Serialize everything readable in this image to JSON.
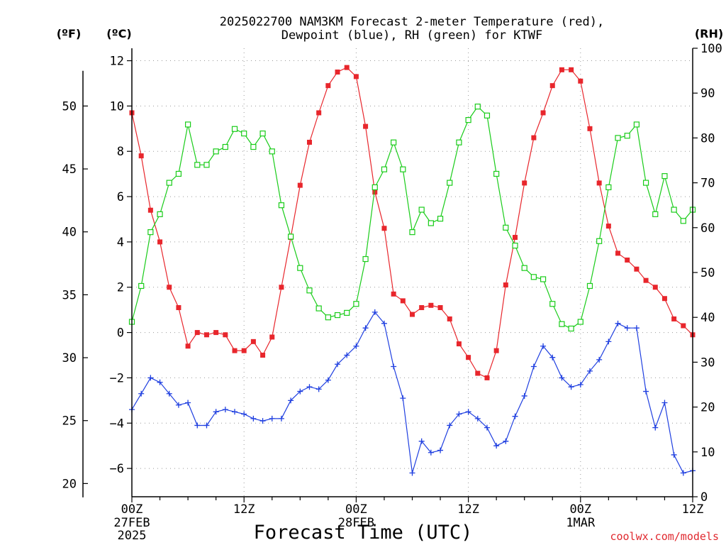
{
  "chart_data": {
    "type": "line",
    "title_line1": "2025022700 NAM3KM Forecast 2-meter Temperature (red),",
    "title_line2": "Dewpoint (blue), RH (green) for KTWF",
    "unit_labels": {
      "fahrenheit": "(ºF)",
      "celsius": "(ºC)",
      "rh": "(RH)"
    },
    "xlabel": "Forecast Time (UTC)",
    "watermark": "coolwx.com/models",
    "x_range_hours": [
      0,
      60
    ],
    "x_ticks": [
      {
        "hour": 0,
        "label": "00Z",
        "date": "27FEB",
        "year": "2025"
      },
      {
        "hour": 12,
        "label": "12Z",
        "date": "",
        "year": ""
      },
      {
        "hour": 24,
        "label": "00Z",
        "date": "28FEB",
        "year": ""
      },
      {
        "hour": 36,
        "label": "12Z",
        "date": "",
        "year": ""
      },
      {
        "hour": 48,
        "label": "00Z",
        "date": "1MAR",
        "year": ""
      },
      {
        "hour": 60,
        "label": "12Z",
        "date": "",
        "year": ""
      }
    ],
    "y_celsius": {
      "range": [
        -7.25,
        12.55
      ],
      "ticks": [
        -6,
        -4,
        -2,
        0,
        2,
        4,
        6,
        8,
        10,
        12
      ],
      "tick_labels": [
        "−6",
        "−4",
        "−2",
        "0",
        "2",
        "4",
        "6",
        "8",
        "10",
        "12"
      ]
    },
    "y_fahrenheit": {
      "ticks": [
        20,
        25,
        30,
        35,
        40,
        45,
        50
      ],
      "tick_labels": [
        "20",
        "25",
        "30",
        "35",
        "40",
        "45",
        "50"
      ]
    },
    "y_rh": {
      "range": [
        0,
        100
      ],
      "ticks": [
        0,
        10,
        20,
        30,
        40,
        50,
        60,
        70,
        80,
        90,
        100
      ],
      "tick_labels": [
        "0",
        "10",
        "20",
        "30",
        "40",
        "50",
        "60",
        "70",
        "80",
        "90",
        "100"
      ]
    },
    "grid": true,
    "colors": {
      "temperature": "#e8262c",
      "dewpoint": "#1f3fe0",
      "rh": "#19cc19",
      "axis": "#000000",
      "grid": "#999999",
      "watermark": "#e0282e"
    },
    "hours": [
      0,
      1,
      2,
      3,
      4,
      5,
      6,
      7,
      8,
      9,
      10,
      11,
      12,
      13,
      14,
      15,
      16,
      17,
      18,
      19,
      20,
      21,
      22,
      23,
      24,
      25,
      26,
      27,
      28,
      29,
      30,
      31,
      32,
      33,
      34,
      35,
      36,
      37,
      38,
      39,
      40,
      41,
      42,
      43,
      44,
      45,
      46,
      47,
      48,
      49,
      50,
      51,
      52,
      53,
      54,
      55,
      56,
      57,
      58,
      59,
      60
    ],
    "series": [
      {
        "key": "temperature",
        "unit": "C",
        "values": [
          9.7,
          7.8,
          5.4,
          4.0,
          2.0,
          1.1,
          -0.6,
          -0.0,
          -0.1,
          -0.0,
          -0.1,
          -0.8,
          -0.8,
          -0.4,
          -1.0,
          -0.2,
          2.0,
          4.2,
          6.5,
          8.4,
          9.7,
          10.9,
          11.5,
          11.7,
          11.3,
          9.1,
          6.2,
          4.6,
          1.7,
          1.4,
          0.8,
          1.1,
          1.2,
          1.1,
          0.6,
          -0.5,
          -1.1,
          -1.8,
          -2.0,
          -0.8,
          2.1,
          4.2,
          6.6,
          8.6,
          9.7,
          10.9,
          11.6,
          11.6,
          11.1,
          9.0,
          6.6,
          4.7,
          3.5,
          3.2,
          2.8,
          2.3,
          2.0,
          1.5,
          0.6,
          0.3,
          -0.1
        ]
      },
      {
        "key": "dewpoint",
        "unit": "C",
        "values": [
          -3.4,
          -2.7,
          -2.0,
          -2.2,
          -2.7,
          -3.2,
          -3.1,
          -4.1,
          -4.1,
          -3.5,
          -3.4,
          -3.5,
          -3.6,
          -3.8,
          -3.9,
          -3.8,
          -3.8,
          -3.0,
          -2.6,
          -2.4,
          -2.5,
          -2.1,
          -1.4,
          -1.0,
          -0.6,
          0.2,
          0.9,
          0.4,
          -1.5,
          -2.9,
          -6.2,
          -4.8,
          -5.3,
          -5.2,
          -4.1,
          -3.6,
          -3.5,
          -3.8,
          -4.2,
          -5.0,
          -4.8,
          -3.7,
          -2.8,
          -1.5,
          -0.6,
          -1.1,
          -2.0,
          -2.4,
          -2.3,
          -1.7,
          -1.2,
          -0.4,
          0.4,
          0.2,
          0.2,
          -2.6,
          -4.2,
          -3.1,
          -5.4,
          -6.2,
          -6.1
        ]
      },
      {
        "key": "rh",
        "unit": "%",
        "values": [
          39,
          47,
          59,
          63,
          70,
          72,
          83,
          74,
          74,
          77,
          78,
          82,
          81,
          78,
          81,
          77,
          65,
          58,
          51,
          46,
          42,
          40,
          40.5,
          41,
          43,
          53,
          69,
          73,
          79,
          73,
          59,
          64,
          61,
          62,
          70,
          79,
          84,
          87,
          85,
          72,
          60,
          56,
          51,
          49,
          48.5,
          43,
          38.5,
          37.5,
          39,
          47,
          57,
          69,
          80,
          80.5,
          83,
          70,
          63,
          71.5,
          64,
          61.5,
          64
        ]
      }
    ]
  }
}
